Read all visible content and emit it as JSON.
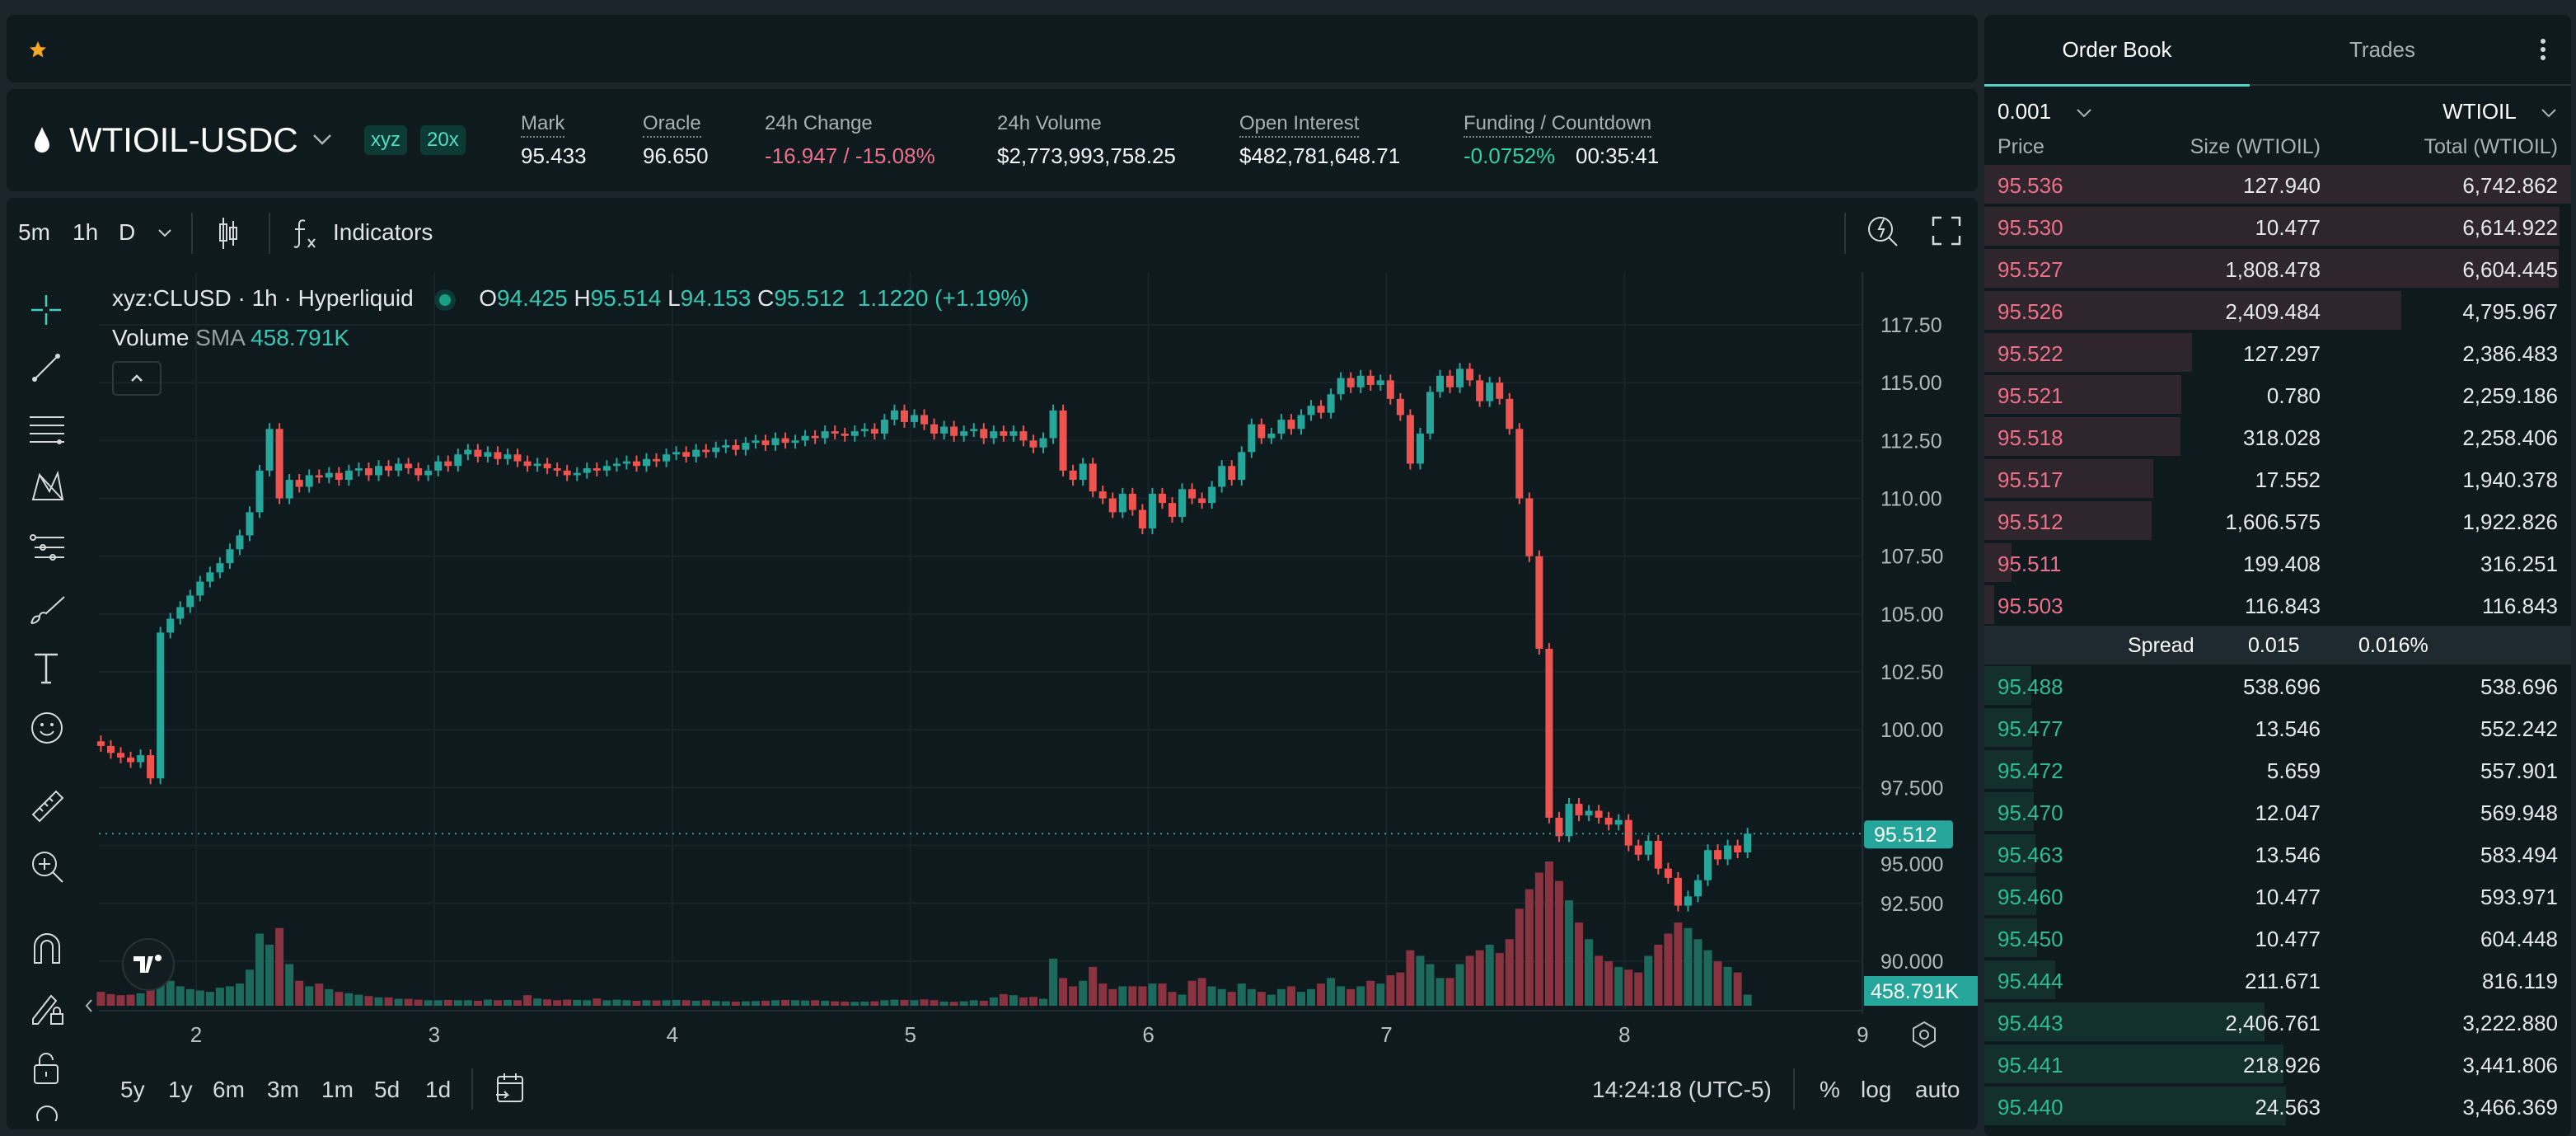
{
  "favorites_bar": {
    "icon": "star-icon",
    "star_color": "#f5a623"
  },
  "header": {
    "symbol": "WTIOIL-USDC",
    "symbol_icon": "oil-drop-icon",
    "badges": [
      "xyz",
      "20x"
    ],
    "stats": {
      "mark": {
        "label": "Mark",
        "value": "95.433"
      },
      "oracle": {
        "label": "Oracle",
        "value": "96.650"
      },
      "change": {
        "label": "24h Change",
        "value": "-16.947 / -15.08%"
      },
      "volume": {
        "label": "24h Volume",
        "value": "$2,773,993,758.25"
      },
      "open_interest": {
        "label": "Open Interest",
        "value": "$482,781,648.71"
      },
      "funding": {
        "label": "Funding / Countdown",
        "rate": "-0.0752%",
        "countdown": "00:35:41"
      }
    }
  },
  "chart_toolbar": {
    "intervals": [
      "5m",
      "1h",
      "D"
    ],
    "active_interval": "1h",
    "indicators_label": "Indicators"
  },
  "chart_legend": {
    "title": "xyz:CLUSD · 1h · Hyperliquid",
    "o_label": "O",
    "o": "94.425",
    "h_label": "H",
    "h": "95.514",
    "l_label": "L",
    "l": "94.153",
    "c_label": "C",
    "c": "95.512",
    "change": "1.1220 (+1.19%)",
    "volume_label": "Volume",
    "sma_label": "SMA",
    "sma_value": "458.791K"
  },
  "chart_bottom": {
    "ranges": [
      "5y",
      "1y",
      "6m",
      "3m",
      "1m",
      "5d",
      "1d"
    ],
    "clock": "14:24:18 (UTC-5)",
    "percent": "%",
    "log": "log",
    "auto": "auto"
  },
  "chart_data": {
    "type": "candlestick",
    "interval": "1h",
    "up_color": "#26a69a",
    "down_color": "#ef5350",
    "x_ticks": [
      "2",
      "3",
      "4",
      "5",
      "6",
      "7",
      "8",
      "9"
    ],
    "y_ticks": [
      "117.50",
      "115.00",
      "112.50",
      "110.00",
      "107.50",
      "105.00",
      "102.50",
      "100.00",
      "97.500",
      "95.000",
      "92.500",
      "90.000"
    ],
    "ylim": [
      90,
      117.5
    ],
    "last_price": "95.512",
    "volume_sma_tag": "458.791K",
    "closes": [
      99.3,
      99.0,
      98.8,
      98.6,
      98.9,
      97.9,
      104.2,
      104.8,
      105.3,
      105.8,
      106.4,
      106.8,
      107.2,
      107.8,
      108.4,
      109.4,
      111.2,
      113.0,
      110.0,
      110.8,
      110.5,
      111.0,
      110.9,
      111.1,
      110.8,
      111.2,
      111.3,
      111.0,
      111.4,
      111.2,
      111.5,
      111.3,
      111.0,
      111.2,
      111.6,
      111.4,
      111.9,
      112.1,
      111.8,
      112.0,
      111.7,
      111.9,
      111.6,
      111.4,
      111.5,
      111.3,
      111.2,
      111.0,
      111.1,
      111.3,
      111.2,
      111.4,
      111.5,
      111.6,
      111.4,
      111.7,
      111.6,
      111.9,
      112.0,
      111.8,
      112.1,
      112.0,
      112.2,
      112.3,
      112.1,
      112.4,
      112.5,
      112.3,
      112.6,
      112.4,
      112.5,
      112.7,
      112.6,
      112.9,
      112.8,
      112.7,
      112.9,
      113.0,
      112.8,
      113.4,
      113.8,
      113.3,
      113.6,
      113.2,
      112.8,
      113.1,
      112.7,
      112.9,
      113.0,
      112.6,
      112.9,
      112.7,
      112.9,
      112.5,
      112.2,
      112.6,
      113.8,
      111.2,
      110.8,
      111.5,
      110.3,
      110.0,
      109.4,
      110.2,
      109.5,
      108.7,
      110.2,
      109.8,
      109.2,
      110.4,
      110.0,
      109.8,
      110.5,
      111.4,
      110.8,
      112.0,
      113.2,
      112.6,
      112.8,
      113.4,
      113.0,
      113.6,
      114.0,
      113.7,
      114.5,
      115.2,
      114.8,
      115.3,
      114.9,
      115.1,
      114.3,
      113.6,
      111.5,
      112.8,
      114.6,
      115.3,
      114.8,
      115.6,
      115.1,
      114.2,
      115.0,
      114.3,
      113.0,
      110.0,
      107.5,
      103.5,
      96.2,
      95.4,
      96.8,
      96.3,
      96.5,
      96.2,
      95.9,
      96.1,
      95.0,
      94.6,
      95.2,
      94.0,
      93.6,
      92.4,
      92.8,
      93.5,
      94.8,
      94.4,
      95.0,
      94.7,
      95.512
    ],
    "volumes_k": [
      500,
      420,
      380,
      400,
      450,
      800,
      1600,
      900,
      700,
      600,
      550,
      500,
      650,
      700,
      800,
      1300,
      2600,
      2200,
      2800,
      1500,
      900,
      700,
      800,
      600,
      500,
      450,
      400,
      350,
      300,
      300,
      250,
      250,
      220,
      200,
      200,
      210,
      200,
      200,
      180,
      220,
      200,
      210,
      200,
      380,
      260,
      230,
      200,
      220,
      210,
      200,
      260,
      200,
      220,
      200,
      180,
      200,
      190,
      200,
      210,
      200,
      180,
      200,
      170,
      160,
      150,
      160,
      170,
      180,
      200,
      210,
      200,
      190,
      200,
      180,
      160,
      150,
      140,
      150,
      160,
      200,
      220,
      210,
      200,
      230,
      200,
      150,
      140,
      160,
      200,
      180,
      300,
      420,
      380,
      300,
      320,
      250,
      1700,
      1000,
      700,
      900,
      1400,
      800,
      600,
      700,
      700,
      700,
      800,
      800,
      500,
      400,
      900,
      1000,
      700,
      600,
      500,
      800,
      600,
      500,
      400,
      600,
      700,
      500,
      600,
      800,
      1000,
      700,
      600,
      700,
      900,
      800,
      1100,
      1200,
      2000,
      1800,
      1500,
      1000,
      1000,
      1500,
      1800,
      2000,
      2200,
      1900,
      2400,
      3500,
      4200,
      4800,
      5200,
      4500,
      3800,
      3000,
      2400,
      1800,
      1600,
      1400,
      1300,
      1200,
      1800,
      2200,
      2600,
      3000,
      2800,
      2400,
      2000,
      1600,
      1400,
      1200,
      400
    ]
  },
  "order_book": {
    "tabs": [
      "Order Book",
      "Trades"
    ],
    "active_tab": "Order Book",
    "tick_size": "0.001",
    "unit": "WTIOIL",
    "columns": [
      "Price",
      "Size (WTIOIL)",
      "Total (WTIOIL)"
    ],
    "ask_color": "#ed7088",
    "bid_color": "#2dbd93",
    "asks": [
      {
        "price": "95.536",
        "size": "127.940",
        "total": "6,742.862"
      },
      {
        "price": "95.530",
        "size": "10.477",
        "total": "6,614.922"
      },
      {
        "price": "95.527",
        "size": "1,808.478",
        "total": "6,604.445"
      },
      {
        "price": "95.526",
        "size": "2,409.484",
        "total": "4,795.967"
      },
      {
        "price": "95.522",
        "size": "127.297",
        "total": "2,386.483"
      },
      {
        "price": "95.521",
        "size": "0.780",
        "total": "2,259.186"
      },
      {
        "price": "95.518",
        "size": "318.028",
        "total": "2,258.406"
      },
      {
        "price": "95.517",
        "size": "17.552",
        "total": "1,940.378"
      },
      {
        "price": "95.512",
        "size": "1,606.575",
        "total": "1,922.826"
      },
      {
        "price": "95.511",
        "size": "199.408",
        "total": "316.251"
      },
      {
        "price": "95.503",
        "size": "116.843",
        "total": "116.843"
      }
    ],
    "spread": {
      "label": "Spread",
      "value": "0.015",
      "percent": "0.016%"
    },
    "bids": [
      {
        "price": "95.488",
        "size": "538.696",
        "total": "538.696"
      },
      {
        "price": "95.477",
        "size": "13.546",
        "total": "552.242"
      },
      {
        "price": "95.472",
        "size": "5.659",
        "total": "557.901"
      },
      {
        "price": "95.470",
        "size": "12.047",
        "total": "569.948"
      },
      {
        "price": "95.463",
        "size": "13.546",
        "total": "583.494"
      },
      {
        "price": "95.460",
        "size": "10.477",
        "total": "593.971"
      },
      {
        "price": "95.450",
        "size": "10.477",
        "total": "604.448"
      },
      {
        "price": "95.444",
        "size": "211.671",
        "total": "816.119"
      },
      {
        "price": "95.443",
        "size": "2,406.761",
        "total": "3,222.880"
      },
      {
        "price": "95.441",
        "size": "218.926",
        "total": "3,441.806"
      },
      {
        "price": "95.440",
        "size": "24.563",
        "total": "3,466.369"
      }
    ]
  }
}
